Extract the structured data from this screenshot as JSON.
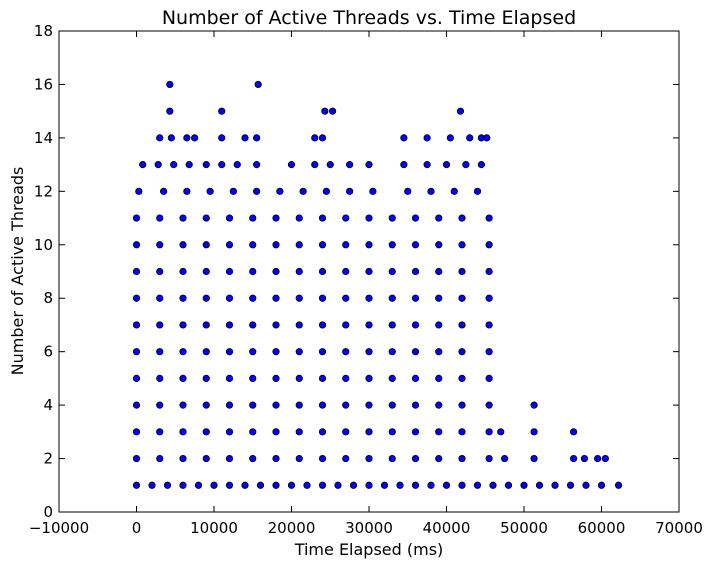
{
  "chart_data": {
    "type": "scatter",
    "title": "Number of Active Threads vs. Time Elapsed",
    "xlabel": "Time Elapsed (ms)",
    "ylabel": "Number of Active Threads",
    "xlim": [
      -10000,
      70000
    ],
    "ylim": [
      0,
      18
    ],
    "xticks": [
      -10000,
      0,
      10000,
      20000,
      30000,
      40000,
      50000,
      60000,
      70000
    ],
    "yticks": [
      0,
      2,
      4,
      6,
      8,
      10,
      12,
      14,
      16,
      18
    ],
    "grid": false,
    "marker_color": "#0000ff",
    "marker_edge_color": "#000000",
    "series": [
      {
        "values_note_excluded": true,
        "points": [
          [
            0,
            1
          ],
          [
            2000,
            1
          ],
          [
            4000,
            1
          ],
          [
            6000,
            1
          ],
          [
            8000,
            1
          ],
          [
            10000,
            1
          ],
          [
            12000,
            1
          ],
          [
            14000,
            1
          ],
          [
            16000,
            1
          ],
          [
            18000,
            1
          ],
          [
            20000,
            1
          ],
          [
            22000,
            1
          ],
          [
            24000,
            1
          ],
          [
            26000,
            1
          ],
          [
            28000,
            1
          ],
          [
            30000,
            1
          ],
          [
            32000,
            1
          ],
          [
            34000,
            1
          ],
          [
            36000,
            1
          ],
          [
            38000,
            1
          ],
          [
            40000,
            1
          ],
          [
            42000,
            1
          ],
          [
            44000,
            1
          ],
          [
            46000,
            1
          ],
          [
            48000,
            1
          ],
          [
            50000,
            1
          ],
          [
            52000,
            1
          ],
          [
            54000,
            1
          ],
          [
            56000,
            1
          ],
          [
            58000,
            1
          ],
          [
            60000,
            1
          ],
          [
            62200,
            1
          ],
          [
            0,
            2
          ],
          [
            3000,
            2
          ],
          [
            6000,
            2
          ],
          [
            9000,
            2
          ],
          [
            12000,
            2
          ],
          [
            15000,
            2
          ],
          [
            18000,
            2
          ],
          [
            21000,
            2
          ],
          [
            24000,
            2
          ],
          [
            27000,
            2
          ],
          [
            30000,
            2
          ],
          [
            33000,
            2
          ],
          [
            36000,
            2
          ],
          [
            39000,
            2
          ],
          [
            42000,
            2
          ],
          [
            45500,
            2
          ],
          [
            47500,
            2
          ],
          [
            51300,
            2
          ],
          [
            56400,
            2
          ],
          [
            57800,
            2
          ],
          [
            59500,
            2
          ],
          [
            60500,
            2
          ],
          [
            0,
            3
          ],
          [
            3000,
            3
          ],
          [
            6000,
            3
          ],
          [
            9000,
            3
          ],
          [
            12000,
            3
          ],
          [
            15000,
            3
          ],
          [
            18000,
            3
          ],
          [
            21000,
            3
          ],
          [
            24000,
            3
          ],
          [
            27000,
            3
          ],
          [
            30000,
            3
          ],
          [
            33000,
            3
          ],
          [
            36000,
            3
          ],
          [
            39000,
            3
          ],
          [
            42000,
            3
          ],
          [
            45500,
            3
          ],
          [
            47000,
            3
          ],
          [
            51300,
            3
          ],
          [
            56400,
            3
          ],
          [
            0,
            4
          ],
          [
            3000,
            4
          ],
          [
            6000,
            4
          ],
          [
            9000,
            4
          ],
          [
            12000,
            4
          ],
          [
            15000,
            4
          ],
          [
            18000,
            4
          ],
          [
            21000,
            4
          ],
          [
            24000,
            4
          ],
          [
            27000,
            4
          ],
          [
            30000,
            4
          ],
          [
            33000,
            4
          ],
          [
            36000,
            4
          ],
          [
            39000,
            4
          ],
          [
            42000,
            4
          ],
          [
            45500,
            4
          ],
          [
            51300,
            4
          ],
          [
            0,
            5
          ],
          [
            3000,
            5
          ],
          [
            6000,
            5
          ],
          [
            9000,
            5
          ],
          [
            12000,
            5
          ],
          [
            15000,
            5
          ],
          [
            18000,
            5
          ],
          [
            21000,
            5
          ],
          [
            24000,
            5
          ],
          [
            27000,
            5
          ],
          [
            30000,
            5
          ],
          [
            33000,
            5
          ],
          [
            36000,
            5
          ],
          [
            39000,
            5
          ],
          [
            42000,
            5
          ],
          [
            45500,
            5
          ],
          [
            0,
            6
          ],
          [
            3000,
            6
          ],
          [
            6000,
            6
          ],
          [
            9000,
            6
          ],
          [
            12000,
            6
          ],
          [
            15000,
            6
          ],
          [
            18000,
            6
          ],
          [
            21000,
            6
          ],
          [
            24000,
            6
          ],
          [
            27000,
            6
          ],
          [
            30000,
            6
          ],
          [
            33000,
            6
          ],
          [
            36000,
            6
          ],
          [
            39000,
            6
          ],
          [
            42000,
            6
          ],
          [
            45500,
            6
          ],
          [
            0,
            7
          ],
          [
            3000,
            7
          ],
          [
            6000,
            7
          ],
          [
            9000,
            7
          ],
          [
            12000,
            7
          ],
          [
            15000,
            7
          ],
          [
            18000,
            7
          ],
          [
            21000,
            7
          ],
          [
            24000,
            7
          ],
          [
            27000,
            7
          ],
          [
            30000,
            7
          ],
          [
            33000,
            7
          ],
          [
            36000,
            7
          ],
          [
            39000,
            7
          ],
          [
            42000,
            7
          ],
          [
            45500,
            7
          ],
          [
            0,
            8
          ],
          [
            3000,
            8
          ],
          [
            6000,
            8
          ],
          [
            9000,
            8
          ],
          [
            12000,
            8
          ],
          [
            15000,
            8
          ],
          [
            18000,
            8
          ],
          [
            21000,
            8
          ],
          [
            24000,
            8
          ],
          [
            27000,
            8
          ],
          [
            30000,
            8
          ],
          [
            33000,
            8
          ],
          [
            36000,
            8
          ],
          [
            39000,
            8
          ],
          [
            42000,
            8
          ],
          [
            45500,
            8
          ],
          [
            0,
            9
          ],
          [
            3000,
            9
          ],
          [
            6000,
            9
          ],
          [
            9000,
            9
          ],
          [
            12000,
            9
          ],
          [
            15000,
            9
          ],
          [
            18000,
            9
          ],
          [
            21000,
            9
          ],
          [
            24000,
            9
          ],
          [
            27000,
            9
          ],
          [
            30000,
            9
          ],
          [
            33000,
            9
          ],
          [
            36000,
            9
          ],
          [
            39000,
            9
          ],
          [
            42000,
            9
          ],
          [
            45500,
            9
          ],
          [
            0,
            10
          ],
          [
            3000,
            10
          ],
          [
            6000,
            10
          ],
          [
            9000,
            10
          ],
          [
            12000,
            10
          ],
          [
            15000,
            10
          ],
          [
            18000,
            10
          ],
          [
            21000,
            10
          ],
          [
            24000,
            10
          ],
          [
            27000,
            10
          ],
          [
            30000,
            10
          ],
          [
            33000,
            10
          ],
          [
            36000,
            10
          ],
          [
            39000,
            10
          ],
          [
            42000,
            10
          ],
          [
            45500,
            10
          ],
          [
            0,
            11
          ],
          [
            3000,
            11
          ],
          [
            6000,
            11
          ],
          [
            9000,
            11
          ],
          [
            12000,
            11
          ],
          [
            15000,
            11
          ],
          [
            18000,
            11
          ],
          [
            21000,
            11
          ],
          [
            24000,
            11
          ],
          [
            27000,
            11
          ],
          [
            30000,
            11
          ],
          [
            33000,
            11
          ],
          [
            36000,
            11
          ],
          [
            39000,
            11
          ],
          [
            42000,
            11
          ],
          [
            45500,
            11
          ],
          [
            300,
            12
          ],
          [
            3500,
            12
          ],
          [
            6500,
            12
          ],
          [
            9500,
            12
          ],
          [
            12500,
            12
          ],
          [
            15500,
            12
          ],
          [
            18500,
            12
          ],
          [
            21500,
            12
          ],
          [
            24500,
            12
          ],
          [
            27500,
            12
          ],
          [
            30500,
            12
          ],
          [
            35000,
            12
          ],
          [
            38000,
            12
          ],
          [
            41000,
            12
          ],
          [
            44000,
            12
          ],
          [
            800,
            13
          ],
          [
            2800,
            13
          ],
          [
            4800,
            13
          ],
          [
            6800,
            13
          ],
          [
            9000,
            13
          ],
          [
            11000,
            13
          ],
          [
            13000,
            13
          ],
          [
            15500,
            13
          ],
          [
            20000,
            13
          ],
          [
            23000,
            13
          ],
          [
            25000,
            13
          ],
          [
            27500,
            13
          ],
          [
            30000,
            13
          ],
          [
            34500,
            13
          ],
          [
            37500,
            13
          ],
          [
            40000,
            13
          ],
          [
            42500,
            13
          ],
          [
            44500,
            13
          ],
          [
            3000,
            14
          ],
          [
            4500,
            14
          ],
          [
            6500,
            14
          ],
          [
            7500,
            14
          ],
          [
            11000,
            14
          ],
          [
            14000,
            14
          ],
          [
            15500,
            14
          ],
          [
            23000,
            14
          ],
          [
            24000,
            14
          ],
          [
            34500,
            14
          ],
          [
            37500,
            14
          ],
          [
            40500,
            14
          ],
          [
            43000,
            14
          ],
          [
            44500,
            14
          ],
          [
            45200,
            14
          ],
          [
            4300,
            15
          ],
          [
            11000,
            15
          ],
          [
            24300,
            15
          ],
          [
            25300,
            15
          ],
          [
            41800,
            15
          ],
          [
            4300,
            16
          ],
          [
            15700,
            16
          ]
        ]
      }
    ]
  }
}
